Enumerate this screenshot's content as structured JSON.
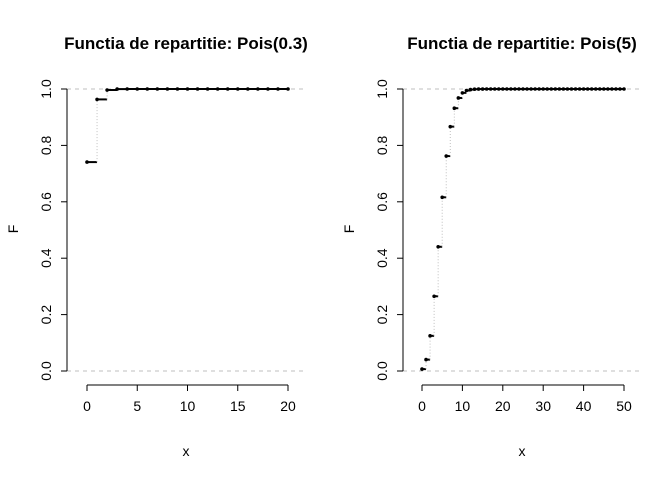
{
  "chart_data": [
    {
      "type": "line",
      "subtype": "step-cdf",
      "title": "Functia de repartitie: Pois(0.3)",
      "xlabel": "x",
      "ylabel": "F",
      "xlim": [
        0,
        20
      ],
      "ylim": [
        0,
        1
      ],
      "x_ticks": [
        0,
        5,
        10,
        15,
        20
      ],
      "y_ticks": [
        0.0,
        0.2,
        0.4,
        0.6,
        0.8,
        1.0
      ],
      "y_tick_labels": [
        "0.0",
        "0.2",
        "0.4",
        "0.6",
        "0.8",
        "1.0"
      ],
      "reference_lines": [
        0,
        1
      ],
      "x": [
        0,
        1,
        2,
        3,
        4,
        5,
        6,
        7,
        8,
        9,
        10,
        11,
        12,
        13,
        14,
        15,
        16,
        17,
        18,
        19,
        20
      ],
      "values": [
        0.7408,
        0.9631,
        0.9964,
        0.9997,
        1,
        1,
        1,
        1,
        1,
        1,
        1,
        1,
        1,
        1,
        1,
        1,
        1,
        1,
        1,
        1,
        1
      ]
    },
    {
      "type": "line",
      "subtype": "step-cdf",
      "title": "Functia de repartitie: Pois(5)",
      "xlabel": "x",
      "ylabel": "F",
      "xlim": [
        0,
        50
      ],
      "ylim": [
        0,
        1
      ],
      "x_ticks": [
        0,
        10,
        20,
        30,
        40,
        50
      ],
      "y_ticks": [
        0.0,
        0.2,
        0.4,
        0.6,
        0.8,
        1.0
      ],
      "y_tick_labels": [
        "0.0",
        "0.2",
        "0.4",
        "0.6",
        "0.8",
        "1.0"
      ],
      "reference_lines": [
        0,
        1
      ],
      "x": [
        0,
        1,
        2,
        3,
        4,
        5,
        6,
        7,
        8,
        9,
        10,
        11,
        12,
        13,
        14,
        15,
        16,
        17,
        18,
        19,
        20,
        21,
        22,
        23,
        24,
        25,
        26,
        27,
        28,
        29,
        30,
        31,
        32,
        33,
        34,
        35,
        36,
        37,
        38,
        39,
        40,
        41,
        42,
        43,
        44,
        45,
        46,
        47,
        48,
        49,
        50
      ],
      "values": [
        0.0067,
        0.0404,
        0.1247,
        0.265,
        0.4405,
        0.616,
        0.7622,
        0.8666,
        0.9319,
        0.9682,
        0.9863,
        0.9945,
        0.998,
        0.9993,
        0.9998,
        0.9999,
        1,
        1,
        1,
        1,
        1,
        1,
        1,
        1,
        1,
        1,
        1,
        1,
        1,
        1,
        1,
        1,
        1,
        1,
        1,
        1,
        1,
        1,
        1,
        1,
        1,
        1,
        1,
        1,
        1,
        1,
        1,
        1,
        1,
        1,
        1
      ]
    }
  ]
}
